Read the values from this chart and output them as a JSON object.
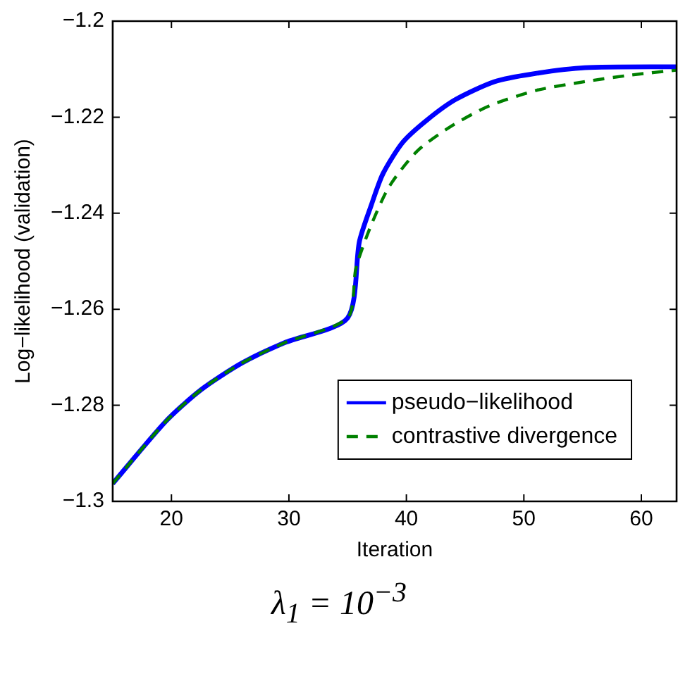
{
  "chart_data": {
    "type": "line",
    "xlabel": "Iteration",
    "ylabel": "Log−likelihood (validation)",
    "annotations": [
      "λ$_{1}$ = 10$^{−3}$"
    ],
    "xlim": [
      15,
      63
    ],
    "xticks": [
      20,
      30,
      40,
      50,
      60
    ],
    "ylim": [
      -1.3,
      -1.2
    ],
    "yticks": [
      -1.3,
      -1.28,
      -1.26,
      -1.24,
      -1.22,
      -1.2
    ],
    "grid": false,
    "legend": "bottom right",
    "marker": "none",
    "series": [
      {
        "name": "pseudo−likelihood",
        "color": "#0000ff",
        "line_style": "solid",
        "x": [
          15,
          19.5,
          22.5,
          26,
          29.6,
          35,
          36,
          37,
          38,
          39.7,
          41.8,
          44.2,
          47.5,
          50.7,
          55.2,
          63
        ],
        "values": [
          -1.2963,
          -1.2834,
          -1.2768,
          -1.2712,
          -1.267,
          -1.2618,
          -1.2459,
          -1.2384,
          -1.2318,
          -1.2252,
          -1.2205,
          -1.2163,
          -1.2126,
          -1.211,
          -1.2097,
          -1.2095
        ]
      },
      {
        "name": "contrastive divergence",
        "color": "#008000",
        "line_style": "dashed",
        "x": [
          15,
          19.5,
          22.5,
          26,
          29.6,
          35,
          35.7,
          36.9,
          38.5,
          40.9,
          43.8,
          47,
          51.1,
          55.2,
          59.2,
          63
        ],
        "values": [
          -1.2963,
          -1.2834,
          -1.2768,
          -1.2712,
          -1.267,
          -1.2618,
          -1.2515,
          -1.2431,
          -1.2346,
          -1.2271,
          -1.2219,
          -1.2177,
          -1.2144,
          -1.2126,
          -1.2112,
          -1.2102
        ]
      }
    ]
  }
}
